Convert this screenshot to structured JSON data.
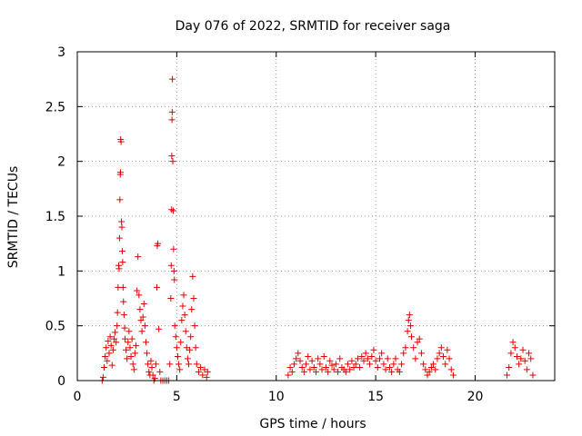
{
  "chart_data": {
    "type": "scatter",
    "title": "Day 076 of 2022, SRMTID for receiver saga",
    "xlabel": "GPS time / hours",
    "ylabel": "SRMTID / TECUs",
    "xlim": [
      0,
      24
    ],
    "ylim": [
      0,
      3
    ],
    "xticks": [
      0,
      5,
      10,
      15,
      20
    ],
    "yticks": [
      0,
      0.5,
      1,
      1.5,
      2,
      2.5,
      3
    ],
    "grid": true,
    "marker": "+",
    "color": "#e00000",
    "series": [
      {
        "name": "SRMTID",
        "points": [
          [
            1.25,
            0.0
          ],
          [
            1.3,
            0.03
          ],
          [
            1.35,
            0.12
          ],
          [
            1.4,
            0.22
          ],
          [
            1.45,
            0.3
          ],
          [
            1.5,
            0.18
          ],
          [
            1.55,
            0.36
          ],
          [
            1.6,
            0.25
          ],
          [
            1.65,
            0.4
          ],
          [
            1.7,
            0.32
          ],
          [
            1.75,
            0.14
          ],
          [
            1.8,
            0.28
          ],
          [
            1.85,
            0.38
          ],
          [
            1.9,
            0.44
          ],
          [
            1.95,
            0.35
          ],
          [
            2.0,
            0.5
          ],
          [
            2.02,
            0.62
          ],
          [
            2.05,
            0.85
          ],
          [
            2.08,
            1.05
          ],
          [
            2.1,
            1.02
          ],
          [
            2.12,
            1.3
          ],
          [
            2.14,
            1.65
          ],
          [
            2.16,
            1.88
          ],
          [
            2.17,
            1.9
          ],
          [
            2.18,
            2.2
          ],
          [
            2.2,
            2.18
          ],
          [
            2.22,
            1.45
          ],
          [
            2.24,
            1.4
          ],
          [
            2.26,
            1.18
          ],
          [
            2.28,
            1.08
          ],
          [
            2.3,
            0.85
          ],
          [
            2.32,
            0.72
          ],
          [
            2.35,
            0.6
          ],
          [
            2.38,
            0.48
          ],
          [
            2.4,
            0.38
          ],
          [
            2.45,
            0.28
          ],
          [
            2.5,
            0.2
          ],
          [
            2.55,
            0.35
          ],
          [
            2.6,
            0.45
          ],
          [
            2.65,
            0.3
          ],
          [
            2.7,
            0.22
          ],
          [
            2.75,
            0.38
          ],
          [
            2.8,
            0.15
          ],
          [
            2.85,
            0.1
          ],
          [
            2.9,
            0.25
          ],
          [
            2.95,
            0.32
          ],
          [
            3.0,
            0.82
          ],
          [
            3.05,
            1.13
          ],
          [
            3.1,
            0.78
          ],
          [
            3.15,
            0.65
          ],
          [
            3.2,
            0.55
          ],
          [
            3.25,
            0.45
          ],
          [
            3.3,
            0.58
          ],
          [
            3.35,
            0.7
          ],
          [
            3.4,
            0.5
          ],
          [
            3.45,
            0.35
          ],
          [
            3.5,
            0.25
          ],
          [
            3.55,
            0.15
          ],
          [
            3.6,
            0.08
          ],
          [
            3.65,
            0.05
          ],
          [
            3.7,
            0.18
          ],
          [
            3.75,
            0.12
          ],
          [
            3.8,
            0.05
          ],
          [
            3.85,
            0.0
          ],
          [
            3.9,
            0.02
          ],
          [
            3.95,
            0.15
          ],
          [
            4.0,
            0.85
          ],
          [
            4.02,
            1.23
          ],
          [
            4.05,
            1.25
          ],
          [
            4.1,
            0.47
          ],
          [
            4.15,
            0.08
          ],
          [
            4.2,
            0.0
          ],
          [
            4.3,
            0.0
          ],
          [
            4.4,
            0.0
          ],
          [
            4.5,
            0.0
          ],
          [
            4.6,
            0.0
          ],
          [
            4.65,
            0.15
          ],
          [
            4.7,
            0.75
          ],
          [
            4.72,
            1.05
          ],
          [
            4.74,
            1.56
          ],
          [
            4.75,
            2.05
          ],
          [
            4.76,
            2.38
          ],
          [
            4.77,
            2.45
          ],
          [
            4.78,
            2.75
          ],
          [
            4.8,
            2.0
          ],
          [
            4.82,
            1.55
          ],
          [
            4.84,
            1.2
          ],
          [
            4.86,
            1.0
          ],
          [
            4.88,
            0.92
          ],
          [
            4.9,
            0.5
          ],
          [
            4.95,
            0.4
          ],
          [
            5.0,
            0.3
          ],
          [
            5.05,
            0.22
          ],
          [
            5.1,
            0.15
          ],
          [
            5.15,
            0.1
          ],
          [
            5.2,
            0.35
          ],
          [
            5.25,
            0.55
          ],
          [
            5.3,
            0.68
          ],
          [
            5.35,
            0.78
          ],
          [
            5.4,
            0.6
          ],
          [
            5.45,
            0.45
          ],
          [
            5.5,
            0.3
          ],
          [
            5.55,
            0.2
          ],
          [
            5.6,
            0.15
          ],
          [
            5.65,
            0.28
          ],
          [
            5.7,
            0.4
          ],
          [
            5.75,
            0.65
          ],
          [
            5.8,
            0.95
          ],
          [
            5.85,
            0.75
          ],
          [
            5.9,
            0.5
          ],
          [
            5.95,
            0.3
          ],
          [
            6.0,
            0.15
          ],
          [
            6.1,
            0.08
          ],
          [
            6.2,
            0.12
          ],
          [
            6.3,
            0.05
          ],
          [
            6.4,
            0.1
          ],
          [
            6.5,
            0.03
          ],
          [
            6.55,
            0.08
          ],
          [
            10.6,
            0.05
          ],
          [
            10.7,
            0.12
          ],
          [
            10.8,
            0.08
          ],
          [
            10.9,
            0.15
          ],
          [
            11.0,
            0.2
          ],
          [
            11.1,
            0.25
          ],
          [
            11.2,
            0.18
          ],
          [
            11.3,
            0.12
          ],
          [
            11.4,
            0.08
          ],
          [
            11.5,
            0.15
          ],
          [
            11.6,
            0.22
          ],
          [
            11.7,
            0.1
          ],
          [
            11.8,
            0.18
          ],
          [
            11.9,
            0.12
          ],
          [
            12.0,
            0.08
          ],
          [
            12.1,
            0.2
          ],
          [
            12.2,
            0.15
          ],
          [
            12.3,
            0.1
          ],
          [
            12.4,
            0.22
          ],
          [
            12.5,
            0.12
          ],
          [
            12.6,
            0.08
          ],
          [
            12.7,
            0.18
          ],
          [
            12.8,
            0.14
          ],
          [
            12.9,
            0.1
          ],
          [
            13.0,
            0.15
          ],
          [
            13.1,
            0.08
          ],
          [
            13.2,
            0.2
          ],
          [
            13.3,
            0.12
          ],
          [
            13.4,
            0.1
          ],
          [
            13.5,
            0.08
          ],
          [
            13.6,
            0.15
          ],
          [
            13.7,
            0.1
          ],
          [
            13.8,
            0.18
          ],
          [
            13.9,
            0.12
          ],
          [
            14.0,
            0.15
          ],
          [
            14.1,
            0.2
          ],
          [
            14.2,
            0.12
          ],
          [
            14.3,
            0.22
          ],
          [
            14.4,
            0.18
          ],
          [
            14.5,
            0.25
          ],
          [
            14.6,
            0.2
          ],
          [
            14.7,
            0.15
          ],
          [
            14.8,
            0.22
          ],
          [
            14.9,
            0.28
          ],
          [
            15.0,
            0.18
          ],
          [
            15.1,
            0.12
          ],
          [
            15.2,
            0.2
          ],
          [
            15.3,
            0.25
          ],
          [
            15.4,
            0.15
          ],
          [
            15.5,
            0.1
          ],
          [
            15.6,
            0.2
          ],
          [
            15.7,
            0.12
          ],
          [
            15.8,
            0.08
          ],
          [
            15.9,
            0.15
          ],
          [
            16.0,
            0.2
          ],
          [
            16.1,
            0.1
          ],
          [
            16.2,
            0.08
          ],
          [
            16.3,
            0.15
          ],
          [
            16.4,
            0.25
          ],
          [
            16.5,
            0.3
          ],
          [
            16.6,
            0.45
          ],
          [
            16.65,
            0.55
          ],
          [
            16.7,
            0.6
          ],
          [
            16.75,
            0.5
          ],
          [
            16.8,
            0.4
          ],
          [
            16.9,
            0.3
          ],
          [
            17.0,
            0.2
          ],
          [
            17.1,
            0.35
          ],
          [
            17.2,
            0.38
          ],
          [
            17.3,
            0.25
          ],
          [
            17.4,
            0.15
          ],
          [
            17.5,
            0.1
          ],
          [
            17.6,
            0.05
          ],
          [
            17.7,
            0.08
          ],
          [
            17.8,
            0.12
          ],
          [
            17.9,
            0.15
          ],
          [
            18.0,
            0.1
          ],
          [
            18.1,
            0.2
          ],
          [
            18.2,
            0.25
          ],
          [
            18.3,
            0.3
          ],
          [
            18.4,
            0.22
          ],
          [
            18.5,
            0.15
          ],
          [
            18.6,
            0.28
          ],
          [
            18.7,
            0.2
          ],
          [
            18.8,
            0.1
          ],
          [
            18.9,
            0.05
          ],
          [
            21.6,
            0.05
          ],
          [
            21.7,
            0.12
          ],
          [
            21.8,
            0.25
          ],
          [
            21.9,
            0.35
          ],
          [
            22.0,
            0.3
          ],
          [
            22.1,
            0.22
          ],
          [
            22.2,
            0.15
          ],
          [
            22.3,
            0.2
          ],
          [
            22.4,
            0.28
          ],
          [
            22.5,
            0.18
          ],
          [
            22.6,
            0.1
          ],
          [
            22.7,
            0.25
          ],
          [
            22.8,
            0.2
          ],
          [
            22.9,
            0.05
          ]
        ]
      }
    ]
  }
}
